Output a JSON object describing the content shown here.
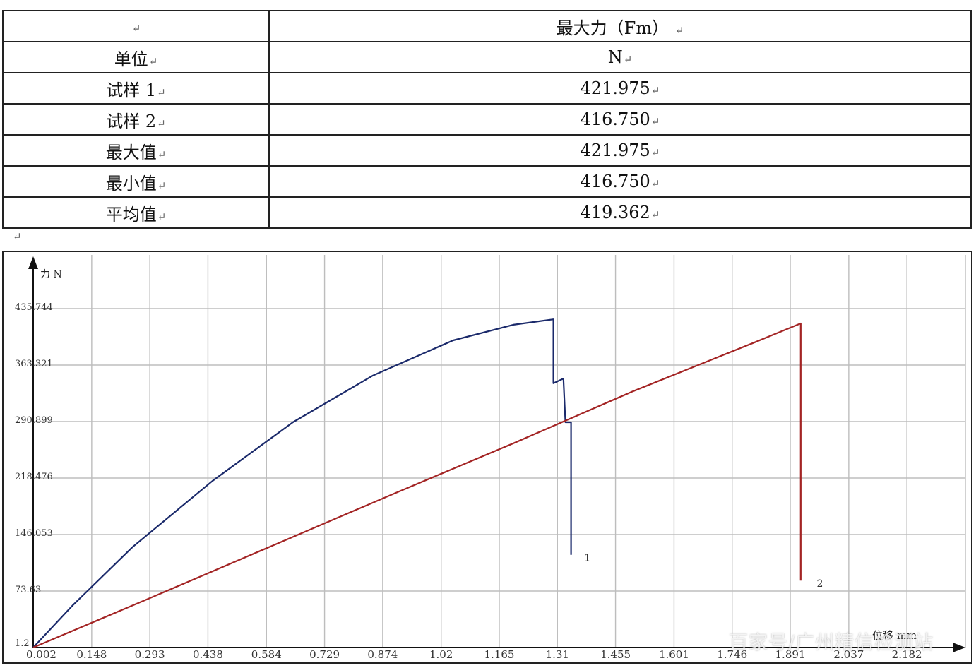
{
  "table": {
    "corner": "",
    "header": "最大力（Fm）",
    "rows": [
      {
        "label": "单位",
        "value": "N"
      },
      {
        "label": "试样 1",
        "value": "421.975"
      },
      {
        "label": "试样 2",
        "value": "416.750"
      },
      {
        "label": "最大值",
        "value": "421.975"
      },
      {
        "label": "最小值",
        "value": "416.750"
      },
      {
        "label": "平均值",
        "value": "419.362"
      }
    ]
  },
  "return_mark": "↵",
  "watermark": "百家号/广州精信检测站",
  "chart_data": {
    "type": "line",
    "ylabel": "力 N",
    "xlabel": "位移 mm",
    "yticks": [
      "1.2",
      "73.63",
      "146.053",
      "218.476",
      "290.899",
      "363.321",
      "435.744"
    ],
    "ytick_values": [
      1.2,
      73.63,
      146.053,
      218.476,
      290.899,
      363.321,
      435.744
    ],
    "xticks": [
      "0.002",
      "0.148",
      "0.293",
      "0.438",
      "0.584",
      "0.729",
      "0.874",
      "1.02",
      "1.165",
      "1.31",
      "1.455",
      "1.601",
      "1.746",
      "1.891",
      "2.037",
      "2.182"
    ],
    "xtick_values": [
      0.002,
      0.148,
      0.293,
      0.438,
      0.584,
      0.729,
      0.874,
      1.02,
      1.165,
      1.31,
      1.455,
      1.601,
      1.746,
      1.891,
      2.037,
      2.182
    ],
    "xlim": [
      0.002,
      2.328
    ],
    "ylim": [
      1.2,
      508.17
    ],
    "grid": true,
    "series": [
      {
        "name": "1",
        "color": "#1b2a6b",
        "x": [
          0.002,
          0.1,
          0.25,
          0.45,
          0.65,
          0.85,
          1.05,
          1.2,
          1.3,
          1.3,
          1.325,
          1.33,
          1.34,
          1.344,
          1.344
        ],
        "y": [
          1.2,
          55,
          130,
          215,
          290,
          350,
          395,
          415,
          421.975,
          340,
          346,
          290,
          290,
          290,
          120
        ]
      },
      {
        "name": "2",
        "color": "#a32424",
        "x": [
          0.002,
          0.3,
          0.6,
          0.9,
          1.2,
          1.5,
          1.8,
          1.917,
          1.917
        ],
        "y": [
          1.2,
          66,
          132,
          198,
          263,
          330,
          392,
          416.75,
          87
        ]
      }
    ],
    "curve_labels": [
      {
        "text": "1",
        "x": 1.377,
        "y": 112
      },
      {
        "text": "2",
        "x": 1.957,
        "y": 79
      }
    ]
  }
}
